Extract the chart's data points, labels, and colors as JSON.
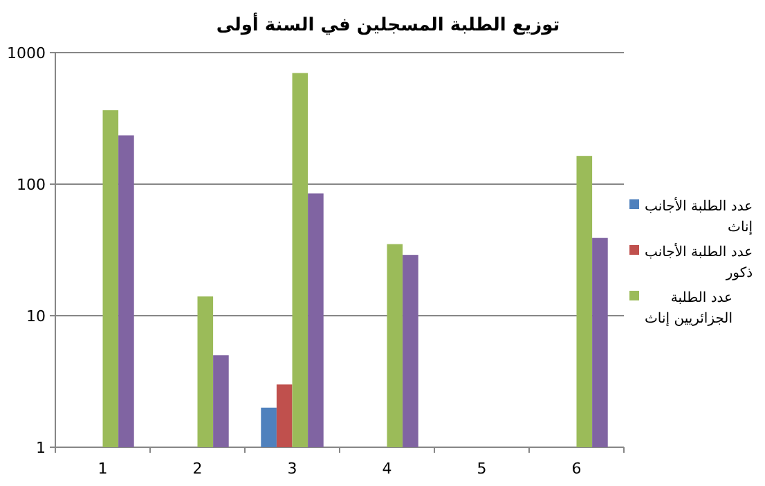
{
  "chart_data": {
    "type": "bar",
    "title": "توزيع الطلبة المسجلين في السنة أولى",
    "categories": [
      "1",
      "2",
      "3",
      "4",
      "5",
      "6"
    ],
    "log": "y",
    "ylim": [
      1,
      1000
    ],
    "yticks": [
      1,
      10,
      100,
      1000
    ],
    "grid": "y",
    "legend": "right",
    "series": [
      {
        "name": "عدد الطلبة الأجانب إناث",
        "color": "#4f81bd",
        "values": [
          null,
          null,
          2,
          null,
          null,
          null
        ]
      },
      {
        "name": "عدد الطلبة الأجانب ذكور",
        "color": "#c0504d",
        "values": [
          null,
          null,
          3,
          null,
          null,
          null
        ]
      },
      {
        "name": "عدد الطلبة الجزائريين إناث",
        "color": "#9bbb59",
        "values": [
          365,
          14,
          700,
          35,
          null,
          164
        ]
      },
      {
        "color": "#8064a2",
        "values": [
          235,
          5,
          85,
          29,
          null,
          39
        ]
      }
    ]
  }
}
